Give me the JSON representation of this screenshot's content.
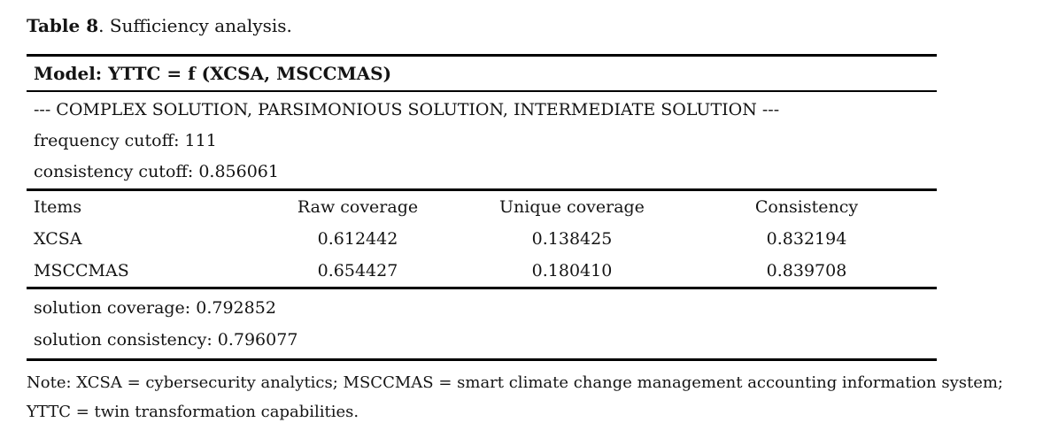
{
  "doc": {
    "caption": {
      "label": "Table 8",
      "rest": ". Sufficiency analysis."
    },
    "model_header": "Model: YTTC = f (XCSA, MSCCMAS)",
    "cutoffs": {
      "method": "--- COMPLEX SOLUTION, PARSIMONIOUS SOLUTION, INTERMEDIATE SOLUTION ---",
      "frequency": "frequency cutoff: 111",
      "consistency": "consistency cutoff: 0.856061"
    },
    "columns": [
      "Items",
      "Raw coverage",
      "Unique coverage",
      "Consistency"
    ],
    "rows": [
      {
        "item": "XCSA",
        "raw_coverage": "0.612442",
        "unique_coverage": "0.138425",
        "consistency": "0.832194"
      },
      {
        "item": "MSCCMAS",
        "raw_coverage": "0.654427",
        "unique_coverage": "0.180410",
        "consistency": "0.839708"
      }
    ],
    "summary": {
      "coverage": "solution coverage: 0.792852",
      "consistency": "solution consistency: 0.796077"
    },
    "note": {
      "line1": "Note: XCSA = cybersecurity analytics; MSCCMAS = smart climate change management accounting information system;",
      "line2": "YTTC = twin transformation capabilities."
    },
    "colors": {
      "text": "#141414",
      "rule": "#000000",
      "background": "#ffffff"
    }
  }
}
